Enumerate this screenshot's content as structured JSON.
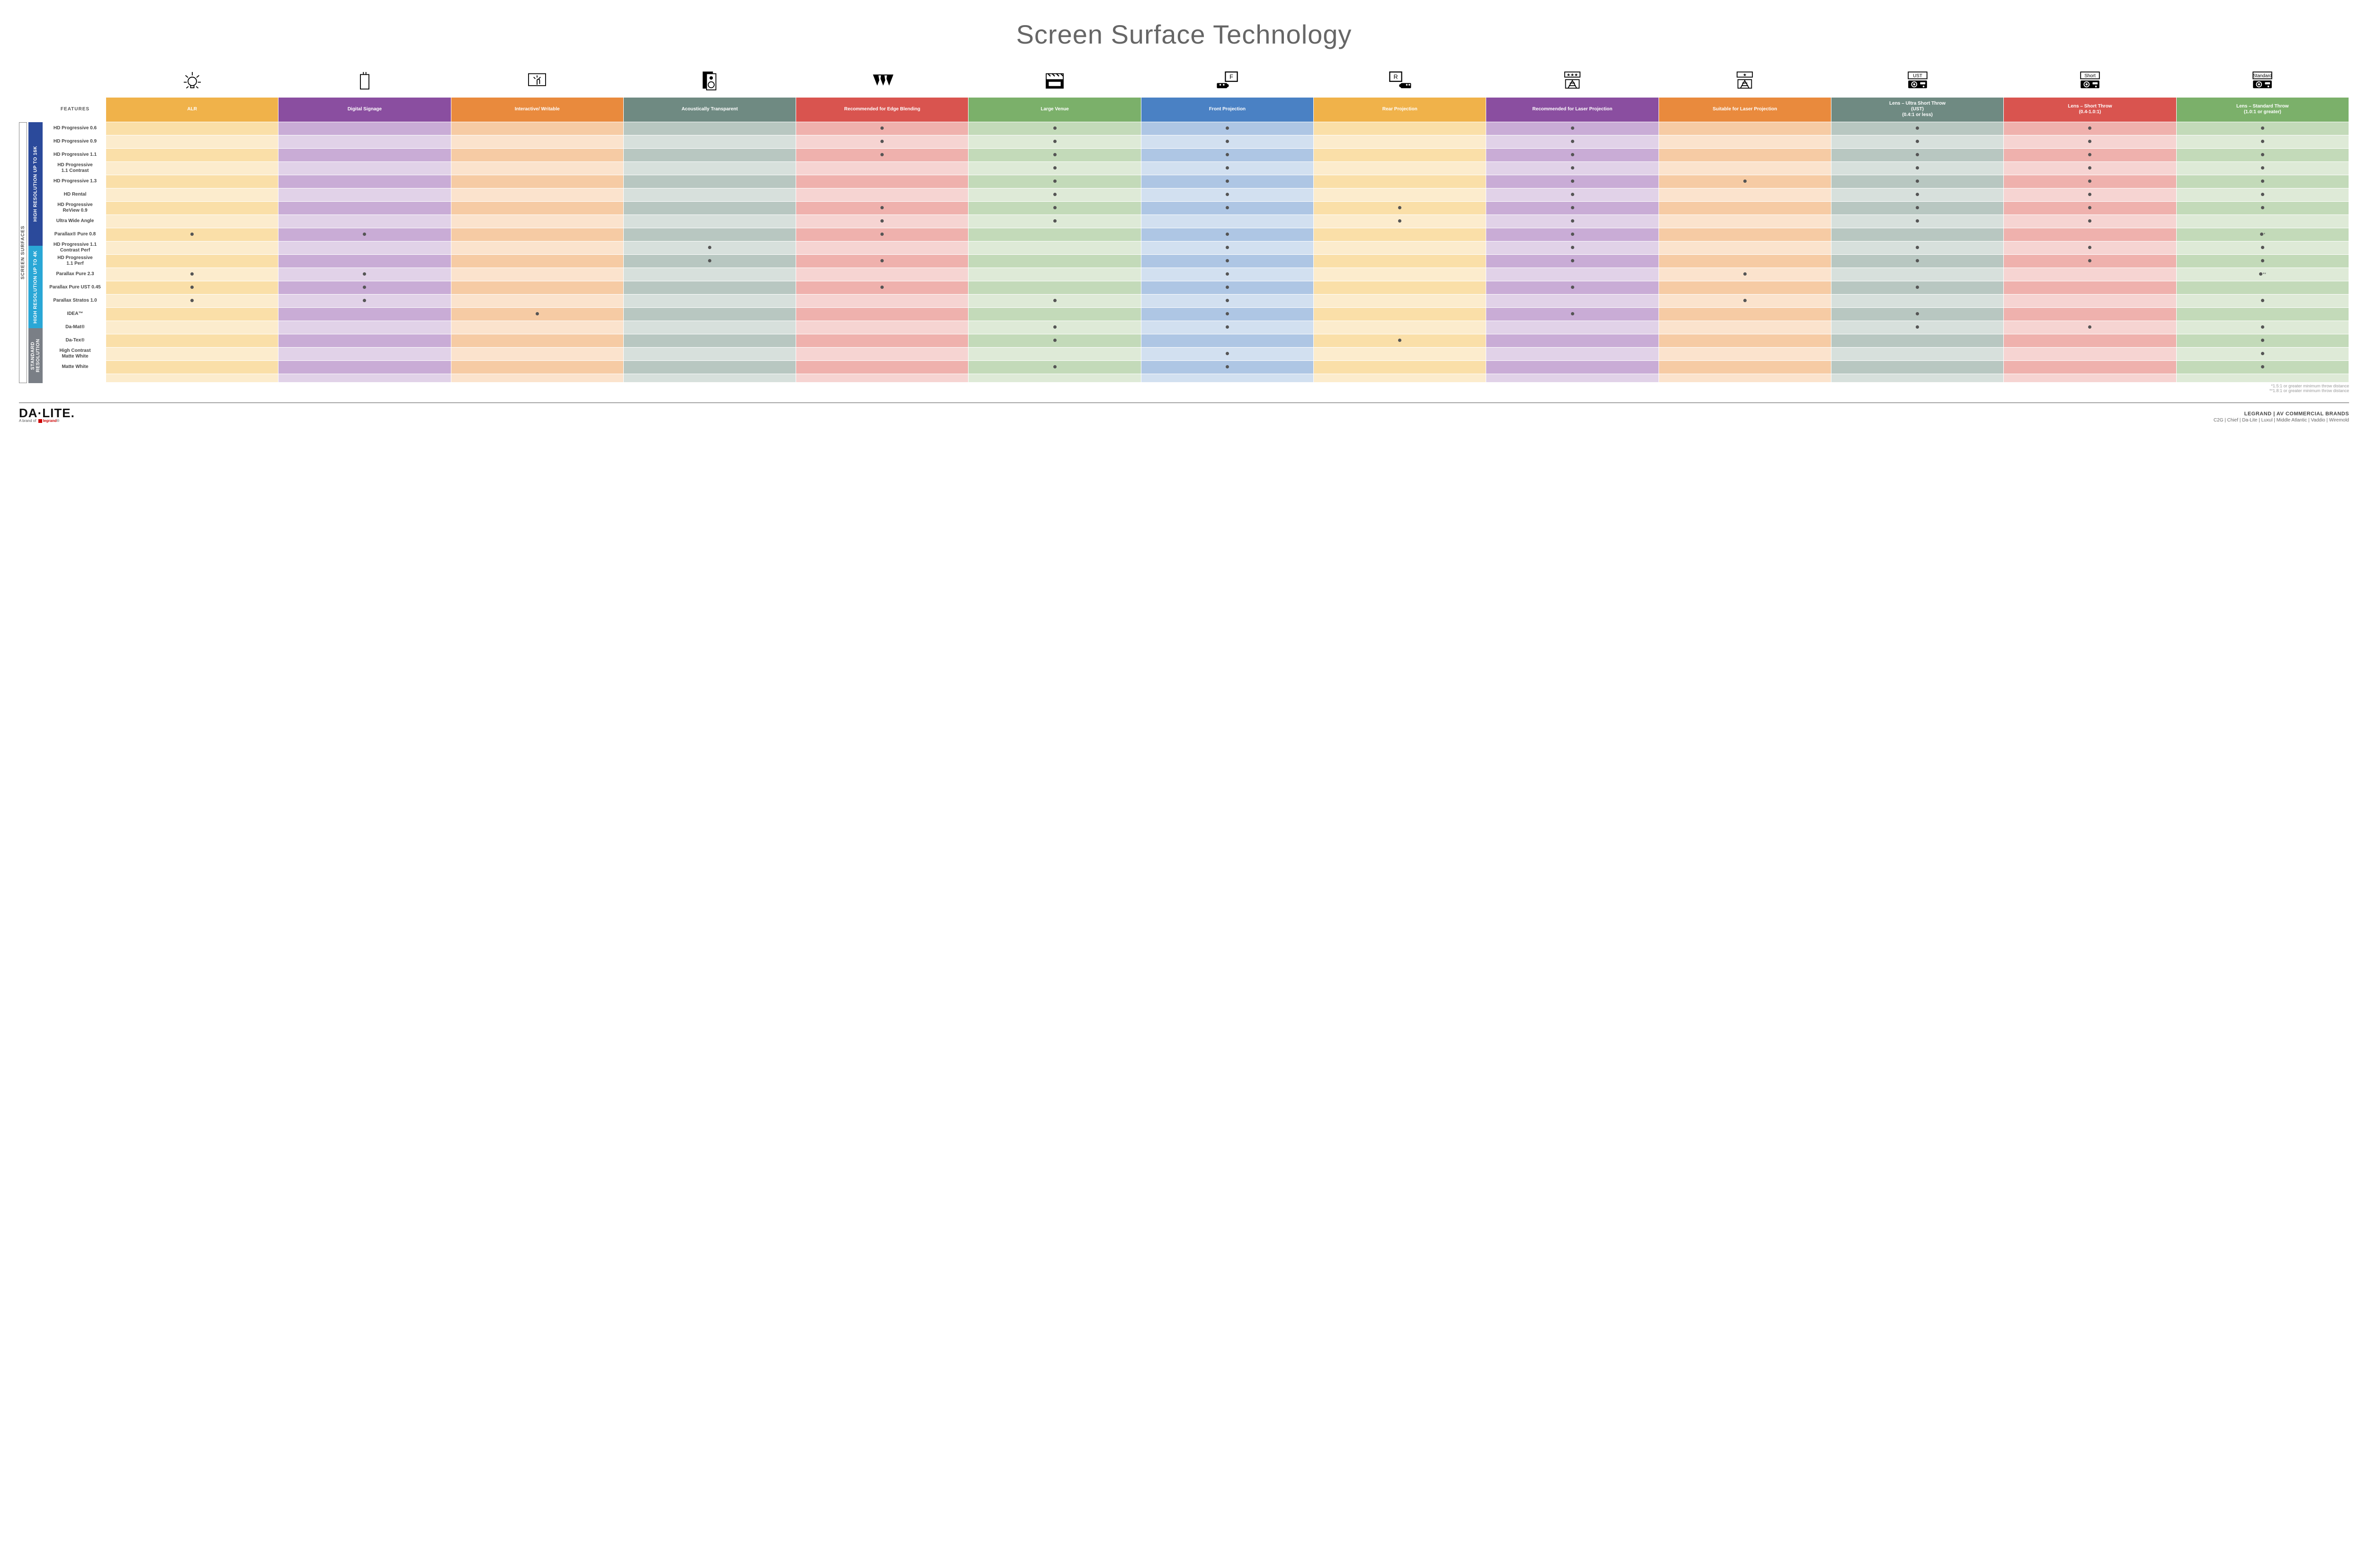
{
  "title": "Screen Surface Technology",
  "featuresLabel": "FEATURES",
  "sideOuter": "SCREEN SURFACES",
  "groups": [
    {
      "label": "HIGH RESOLUTION UP TO 16K",
      "color": "#2b4a9b",
      "rows": 9
    },
    {
      "label": "HIGH RESOLUTION UP TO 4K",
      "color": "#2aa7d6",
      "rows": 6
    },
    {
      "label": "STANDARD RESOLUTION",
      "color": "#7a7f86",
      "rows": 4
    }
  ],
  "columns": [
    {
      "key": "alr",
      "label": "ALR",
      "color": "#f0b24a",
      "tintA": "#fadfa8",
      "tintB": "#fceccd",
      "icon": "bulb"
    },
    {
      "key": "dsig",
      "label": "Digital Signage",
      "color": "#8a4ea0",
      "tintA": "#c9acd6",
      "tintB": "#e1d2e8",
      "icon": "sign"
    },
    {
      "key": "int",
      "label": "Interactive/ Writable",
      "color": "#e98a3d",
      "tintA": "#f6cba4",
      "tintB": "#fbe3cd",
      "icon": "touch"
    },
    {
      "key": "ac",
      "label": "Acoustically Transparent",
      "color": "#6f8a82",
      "tintA": "#b8c7c1",
      "tintB": "#d7e0dc",
      "icon": "speaker"
    },
    {
      "key": "edge",
      "label": "Recommended for Edge Blending",
      "color": "#d9544f",
      "tintA": "#efb1ad",
      "tintB": "#f6d4d2",
      "icon": "edge"
    },
    {
      "key": "lv",
      "label": "Large Venue",
      "color": "#7bb06a",
      "tintA": "#c3dab9",
      "tintB": "#deead7",
      "icon": "venue"
    },
    {
      "key": "fp",
      "label": "Front Projection",
      "color": "#4a81c4",
      "tintA": "#aec6e4",
      "tintB": "#d2e0f0",
      "icon": "front"
    },
    {
      "key": "rp",
      "label": "Rear Projection",
      "color": "#f0b24a",
      "tintA": "#fadfa8",
      "tintB": "#fceccd",
      "icon": "rear"
    },
    {
      "key": "rlp",
      "label": "Recommended for Laser Projection",
      "color": "#8a4ea0",
      "tintA": "#c9acd6",
      "tintB": "#e1d2e8",
      "icon": "laser3"
    },
    {
      "key": "slp",
      "label": "Suitable for Laser Projection",
      "color": "#e98a3d",
      "tintA": "#f6cba4",
      "tintB": "#fbe3cd",
      "icon": "laser1"
    },
    {
      "key": "ust",
      "label": "Lens – Ultra Short Throw (UST) (0.4:1 or less)",
      "color": "#6f8a82",
      "tintA": "#b8c7c1",
      "tintB": "#d7e0dc",
      "icon": "proj",
      "iconLabel": "UST"
    },
    {
      "key": "st",
      "label": "Lens – Short Throw (0.4-1.0:1)",
      "color": "#d9544f",
      "tintA": "#efb1ad",
      "tintB": "#f6d4d2",
      "icon": "proj",
      "iconLabel": "Short"
    },
    {
      "key": "std",
      "label": "Lens – Standard Throw (1.0:1 or greater)",
      "color": "#7bb06a",
      "tintA": "#c3dab9",
      "tintB": "#deead7",
      "icon": "proj",
      "iconLabel": "Standard"
    }
  ],
  "rows": [
    {
      "label": "HD Progressive 0.6",
      "dots": {
        "edge": "",
        "lv": "",
        "fp": "",
        "rlp": "",
        "ust": "",
        "st": "",
        "std": ""
      }
    },
    {
      "label": "HD Progressive 0.9",
      "dots": {
        "edge": "",
        "lv": "",
        "fp": "",
        "rlp": "",
        "ust": "",
        "st": "",
        "std": ""
      }
    },
    {
      "label": "HD Progressive 1.1",
      "dots": {
        "edge": "",
        "lv": "",
        "fp": "",
        "rlp": "",
        "ust": "",
        "st": "",
        "std": ""
      }
    },
    {
      "label": "HD Progressive 1.1 Contrast",
      "dots": {
        "lv": "",
        "fp": "",
        "rlp": "",
        "ust": "",
        "st": "",
        "std": ""
      }
    },
    {
      "label": "HD Progressive 1.3",
      "dots": {
        "lv": "",
        "fp": "",
        "rlp": "",
        "slp": "",
        "ust": "",
        "st": "",
        "std": ""
      }
    },
    {
      "label": "HD Rental",
      "dots": {
        "lv": "",
        "fp": "",
        "rlp": "",
        "ust": "",
        "st": "",
        "std": ""
      }
    },
    {
      "label": "HD Progressive ReView 0.9",
      "dots": {
        "edge": "",
        "lv": "",
        "fp": "",
        "rp": "",
        "rlp": "",
        "ust": "",
        "st": "",
        "std": ""
      }
    },
    {
      "label": "Ultra Wide Angle",
      "dots": {
        "edge": "",
        "lv": "",
        "rp": "",
        "rlp": "",
        "ust": "",
        "st": ""
      }
    },
    {
      "label": "Parallax® Pure 0.8",
      "dots": {
        "alr": "",
        "dsig": "",
        "edge": "",
        "fp": "",
        "rlp": "",
        "std": "*"
      }
    },
    {
      "label": "HD Progressive 1.1 Contrast Perf",
      "dots": {
        "ac": "",
        "fp": "",
        "rlp": "",
        "ust": "",
        "st": "",
        "std": ""
      }
    },
    {
      "label": "HD Progressive 1.1 Perf",
      "dots": {
        "ac": "",
        "edge": "",
        "fp": "",
        "rlp": "",
        "ust": "",
        "st": "",
        "std": ""
      }
    },
    {
      "label": "Parallax Pure 2.3",
      "dots": {
        "alr": "",
        "dsig": "",
        "fp": "",
        "slp": "",
        "std": "**"
      }
    },
    {
      "label": "Parallax Pure UST 0.45",
      "dots": {
        "alr": "",
        "dsig": "",
        "edge": "",
        "fp": "",
        "rlp": "",
        "ust": ""
      }
    },
    {
      "label": "Parallax Stratos 1.0",
      "dots": {
        "alr": "",
        "dsig": "",
        "lv": "",
        "fp": "",
        "slp": "",
        "std": ""
      }
    },
    {
      "label": "IDEA™",
      "dots": {
        "int": "",
        "fp": "",
        "rlp": "",
        "ust": ""
      }
    },
    {
      "label": "Da-Mat®",
      "dots": {
        "lv": "",
        "fp": "",
        "ust": "",
        "st": "",
        "std": ""
      }
    },
    {
      "label": "Da-Tex®",
      "dots": {
        "lv": "",
        "rp": "",
        "std": ""
      }
    },
    {
      "label": "High Contrast Matte White",
      "dots": {
        "fp": "",
        "std": ""
      }
    },
    {
      "label": "Matte White",
      "dots": {
        "lv": "",
        "fp": "",
        "std": ""
      }
    }
  ],
  "footnotes": [
    "*1.5:1 or greater minimum throw distance",
    "**1.8:1 or greater minimum throw distance"
  ],
  "footer": {
    "logoMain": "DA·LITE",
    "logoSubPrefix": "A brand of ",
    "logoSubBrand": "legrand",
    "brandsTop": "LEGRAND | AV COMMERCIAL BRANDS",
    "brandsList": "C2G  |  Chief  |  Da-Lite  |  Luxul  |  Middle Atlantic  |  Vaddio  |  Wiremold"
  }
}
